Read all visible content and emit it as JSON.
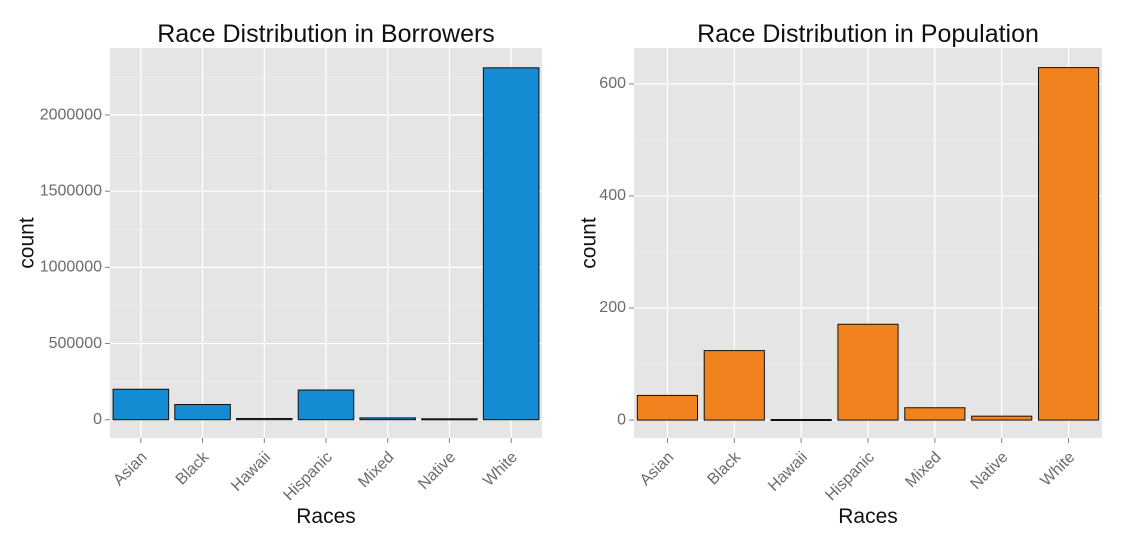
{
  "chart_data": [
    {
      "type": "bar",
      "title": "Race Distribution in Borrowers",
      "xlabel": "Races",
      "ylabel": "count",
      "categories": [
        "Asian",
        "Black",
        "Hawaii",
        "Hispanic",
        "Mixed",
        "Native",
        "White"
      ],
      "values": [
        200000,
        100000,
        8000,
        195000,
        12000,
        6000,
        2310000
      ],
      "ylim": [
        -120000,
        2440000
      ],
      "yticks": [
        0,
        500000,
        1000000,
        1500000,
        2000000
      ],
      "ytick_labels": [
        "0",
        "500000",
        "1000000",
        "1500000",
        "2000000"
      ],
      "bar_color": "#158bd3",
      "grid": true
    },
    {
      "type": "bar",
      "title": "Race Distribution in Population",
      "xlabel": "Races",
      "ylabel": "count",
      "categories": [
        "Asian",
        "Black",
        "Hawaii",
        "Hispanic",
        "Mixed",
        "Native",
        "White"
      ],
      "values": [
        44,
        124,
        1,
        171,
        22,
        7,
        629
      ],
      "ylim": [
        -32,
        664
      ],
      "yticks": [
        0,
        200,
        400,
        600
      ],
      "ytick_labels": [
        "0",
        "200",
        "400",
        "600"
      ],
      "bar_color": "#f2821e",
      "grid": true
    }
  ]
}
